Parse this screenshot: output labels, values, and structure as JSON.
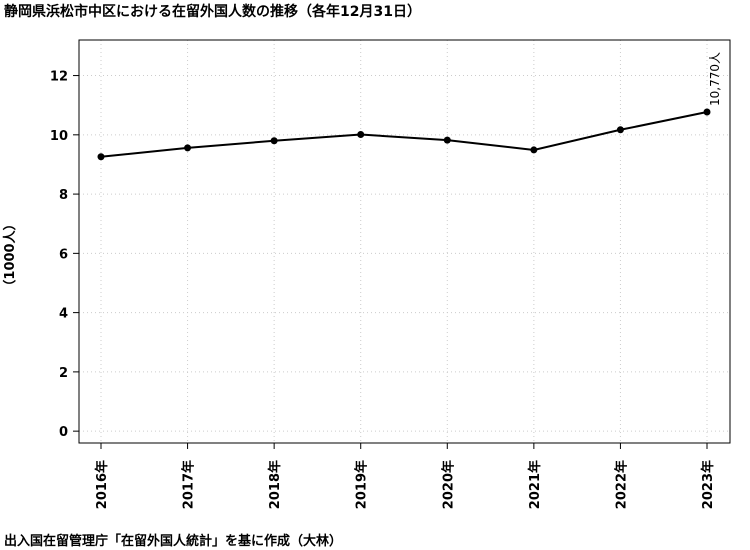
{
  "title": "静岡県浜松市中区における在留外国人数の推移（各年12月31日）",
  "footer": "出入国在留管理庁「在留外国人統計」を基に作成（大林）",
  "chart_data": {
    "type": "line",
    "title": "静岡県浜松市中区における在留外国人数の推移（各年12月31日）",
    "xlabel": "",
    "ylabel": "（1000人）",
    "categories": [
      "2016年",
      "2017年",
      "2018年",
      "2019年",
      "2020年",
      "2021年",
      "2022年",
      "2023年"
    ],
    "series": [
      {
        "values": [
          9.26,
          9.56,
          9.8,
          10.01,
          9.82,
          9.49,
          10.17,
          10.77
        ]
      }
    ],
    "ylim": [
      -0.4,
      13.2
    ],
    "yticks": [
      0,
      2,
      4,
      6,
      8,
      10,
      12
    ],
    "grid": true,
    "annotation": {
      "index": 7,
      "text": "10,770人"
    },
    "colors": {
      "line": "#000000",
      "grid": "#cccccc"
    }
  }
}
